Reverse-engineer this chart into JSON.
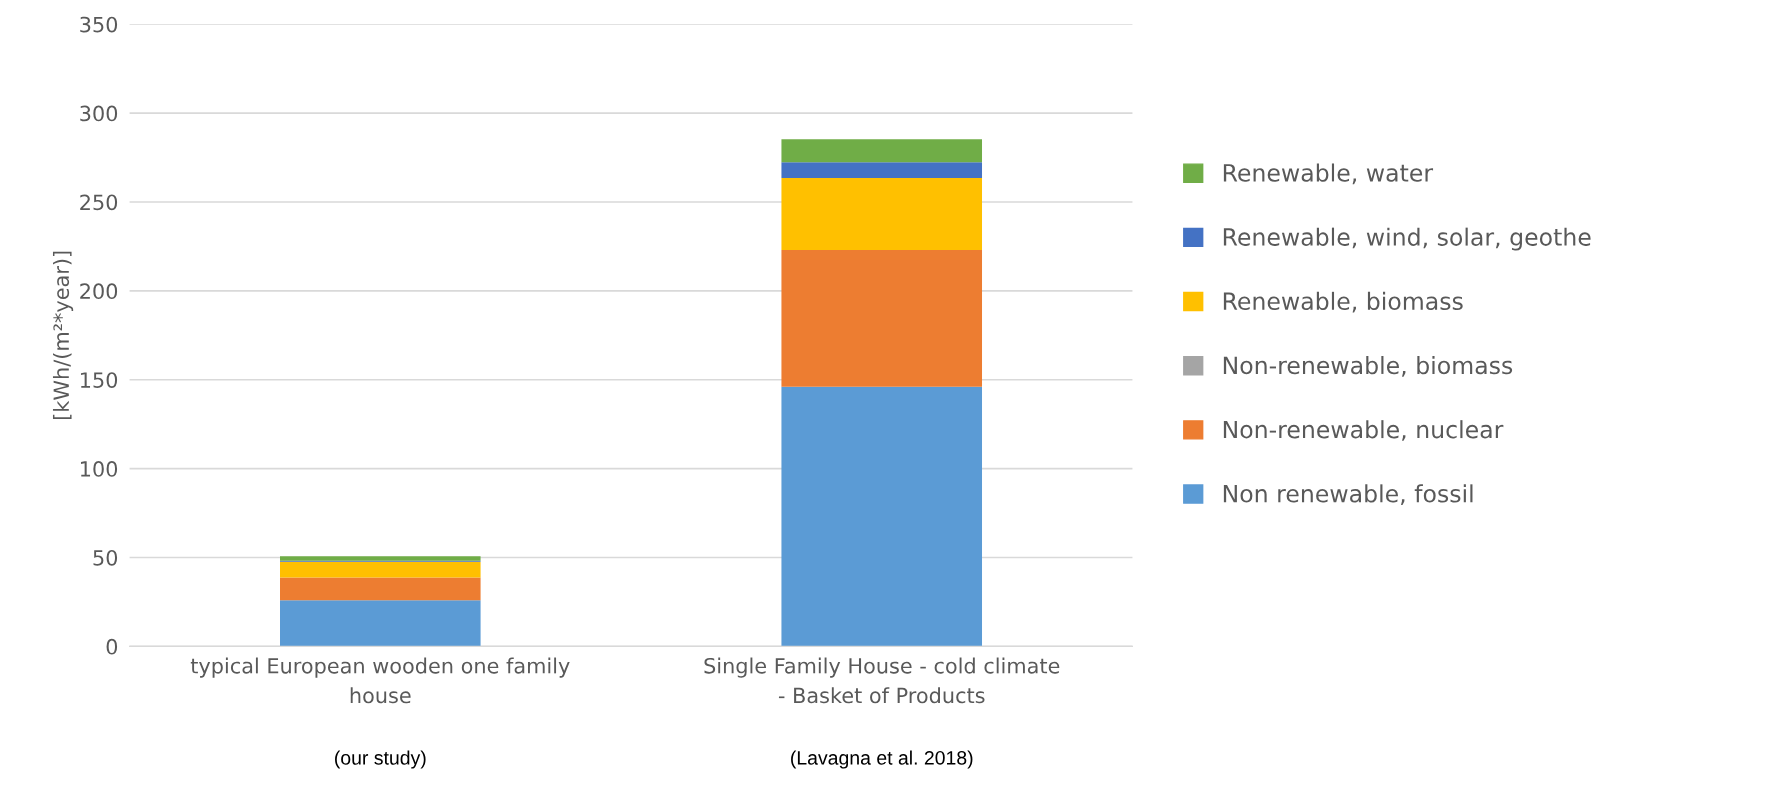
{
  "chart_data": {
    "type": "bar",
    "stacked": true,
    "ylabel": "[kWh/(m²*year)]",
    "categories": [
      "typical European wooden one family house",
      "Single Family House - cold climate - Basket of Products"
    ],
    "series": [
      {
        "name": "Non renewable, fossil",
        "color": "#5b9bd5",
        "values": [
          26,
          146
        ]
      },
      {
        "name": "Non-renewable, nuclear",
        "color": "#ed7d31",
        "values": [
          12.8,
          77
        ]
      },
      {
        "name": "Non-renewable, biomass",
        "color": "#a5a5a5",
        "values": [
          0,
          0
        ]
      },
      {
        "name": "Renewable, biomass",
        "color": "#ffc000",
        "values": [
          8.8,
          40.5
        ]
      },
      {
        "name": "Renewable, wind, solar, geothe",
        "color": "#4472c4",
        "values": [
          0.6,
          8.8
        ]
      },
      {
        "name": "Renewable, water",
        "color": "#70ad47",
        "values": [
          2.5,
          13
        ]
      }
    ],
    "ylim": [
      0,
      350
    ],
    "yticks": [
      0,
      50,
      100,
      150,
      200,
      250,
      300,
      350
    ],
    "grid": "y",
    "legend": "right",
    "annotations": [
      "(our study)",
      "(Lavagna et al. 2018)"
    ]
  }
}
